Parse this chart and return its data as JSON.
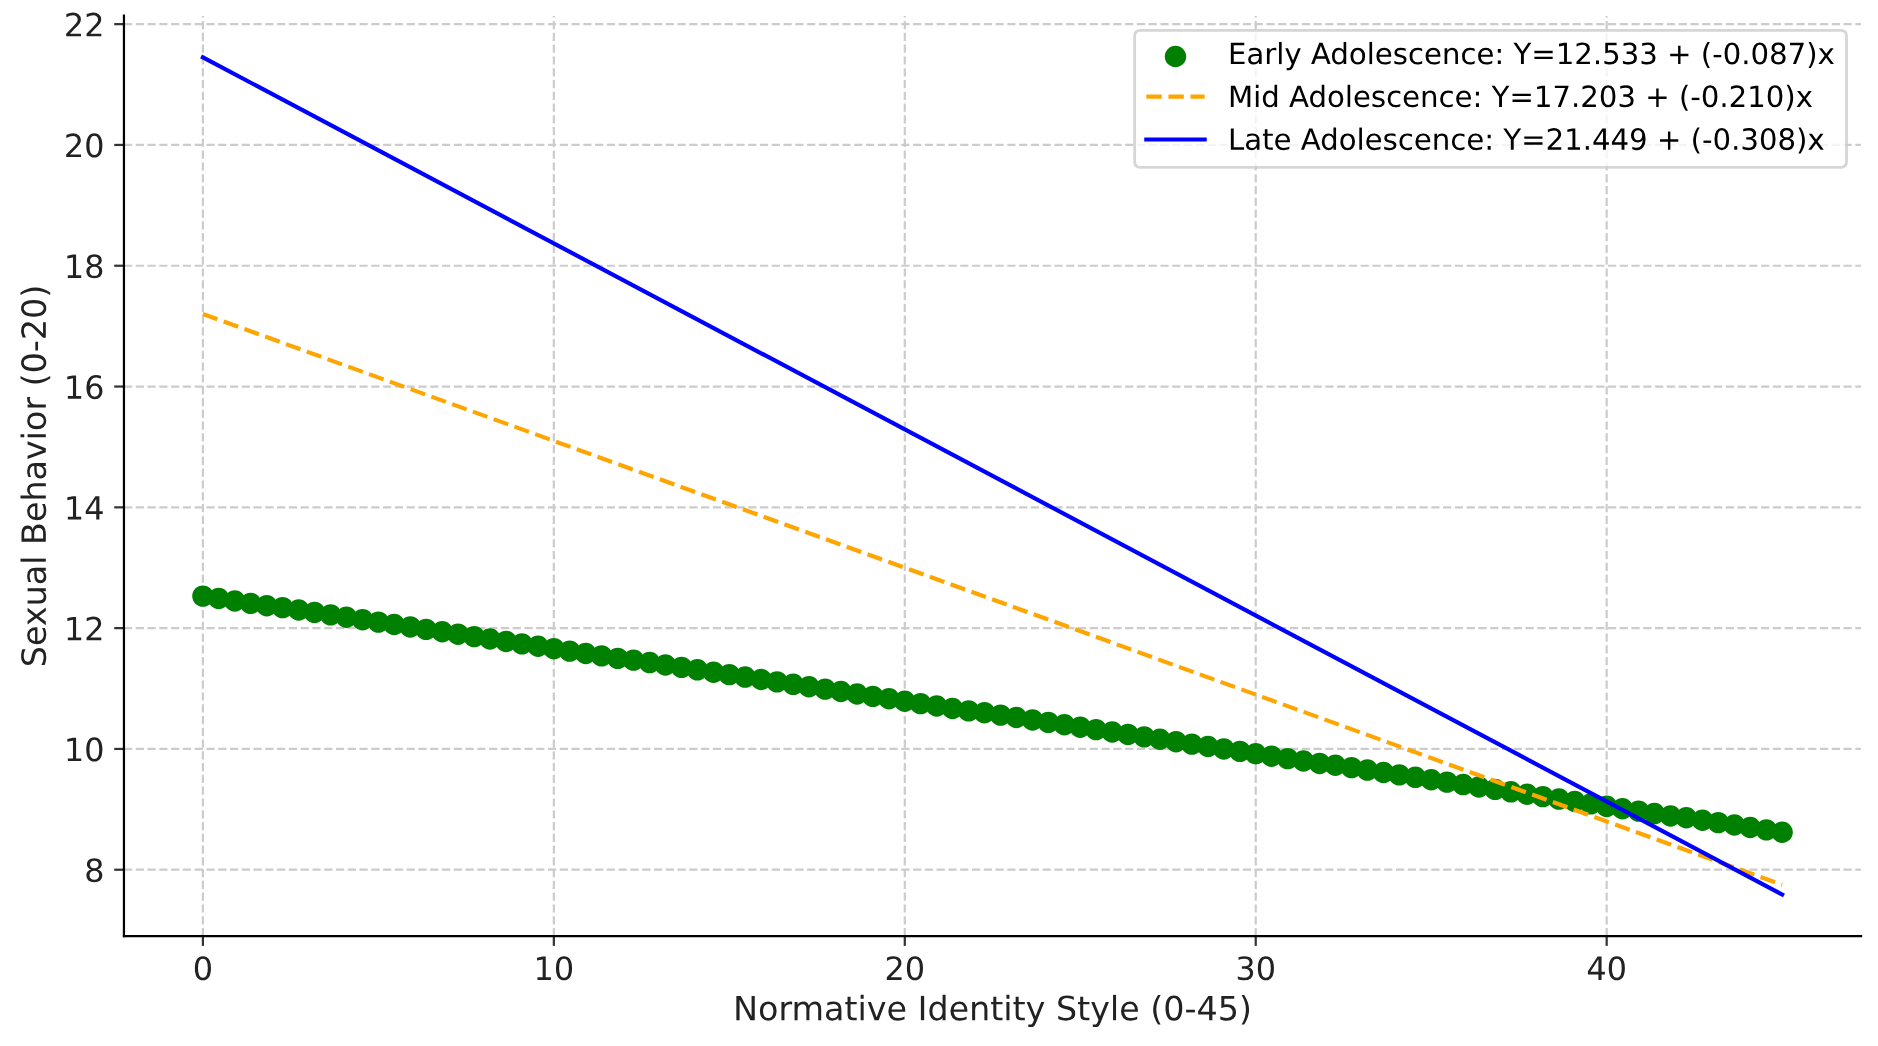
{
  "chart_data": {
    "type": "line",
    "xlabel": "Normative Identity Style (0-45)",
    "ylabel": "Sexual Behavior (0-20)",
    "xlim": [
      -2.25,
      47.25
    ],
    "ylim": [
      6.9,
      22.14
    ],
    "xticks": [
      0,
      10,
      20,
      30,
      40
    ],
    "yticks": [
      8,
      10,
      12,
      14,
      16,
      18,
      20,
      22
    ],
    "grid": true,
    "legend": "top right",
    "series": [
      {
        "name": "Early Adolescence: Y=12.533 + (-0.087)x",
        "type": "scatter",
        "marker": "circle",
        "color": "#008000",
        "x": [
          0,
          0.45,
          0.91,
          1.36,
          1.82,
          2.27,
          2.73,
          3.18,
          3.64,
          4.09,
          4.55,
          5,
          5.45,
          5.91,
          6.36,
          6.82,
          7.27,
          7.73,
          8.18,
          8.64,
          9.09,
          9.55,
          10,
          10.45,
          10.91,
          11.36,
          11.82,
          12.27,
          12.73,
          13.18,
          13.64,
          14.09,
          14.55,
          15,
          15.45,
          15.91,
          16.36,
          16.82,
          17.27,
          17.73,
          18.18,
          18.64,
          19.09,
          19.55,
          20,
          20.45,
          20.91,
          21.36,
          21.82,
          22.27,
          22.73,
          23.18,
          23.64,
          24.09,
          24.55,
          25,
          25.45,
          25.91,
          26.36,
          26.82,
          27.27,
          27.73,
          28.18,
          28.64,
          29.09,
          29.55,
          30,
          30.45,
          30.91,
          31.36,
          31.82,
          32.27,
          32.73,
          33.18,
          33.64,
          34.09,
          34.55,
          35,
          35.45,
          35.91,
          36.36,
          36.82,
          37.27,
          37.73,
          38.18,
          38.64,
          39.09,
          39.55,
          40,
          40.45,
          40.91,
          41.36,
          41.82,
          42.27,
          42.73,
          43.18,
          43.64,
          44.09,
          44.55,
          45
        ],
        "values": [
          12.53,
          12.49,
          12.45,
          12.41,
          12.37,
          12.34,
          12.3,
          12.26,
          12.22,
          12.18,
          12.14,
          12.1,
          12.06,
          12.02,
          11.98,
          11.94,
          11.9,
          11.86,
          11.82,
          11.78,
          11.74,
          11.7,
          11.66,
          11.62,
          11.58,
          11.54,
          11.5,
          11.47,
          11.43,
          11.39,
          11.35,
          11.31,
          11.27,
          11.23,
          11.19,
          11.15,
          11.11,
          11.07,
          11.03,
          10.99,
          10.95,
          10.91,
          10.87,
          10.83,
          10.79,
          10.75,
          10.71,
          10.67,
          10.63,
          10.6,
          10.56,
          10.52,
          10.48,
          10.44,
          10.4,
          10.36,
          10.32,
          10.28,
          10.24,
          10.2,
          10.16,
          10.12,
          10.08,
          10.04,
          10.0,
          9.96,
          9.92,
          9.88,
          9.84,
          9.8,
          9.76,
          9.73,
          9.69,
          9.65,
          9.61,
          9.57,
          9.53,
          9.49,
          9.45,
          9.41,
          9.37,
          9.33,
          9.29,
          9.25,
          9.21,
          9.17,
          9.13,
          9.09,
          9.05,
          9.01,
          8.97,
          8.93,
          8.89,
          8.86,
          8.82,
          8.78,
          8.74,
          8.7,
          8.66,
          8.62
        ]
      },
      {
        "name": "Mid Adolescence: Y=17.203 + (-0.210)x",
        "line_style": "dashed",
        "color": "#ffa500",
        "x": [
          0,
          45
        ],
        "values": [
          17.2,
          7.75
        ]
      },
      {
        "name": "Late Adolescence: Y=21.449 + (-0.308)x",
        "line_style": "solid",
        "color": "#0000ff",
        "x": [
          0,
          45
        ],
        "values": [
          21.45,
          7.59
        ]
      }
    ]
  }
}
